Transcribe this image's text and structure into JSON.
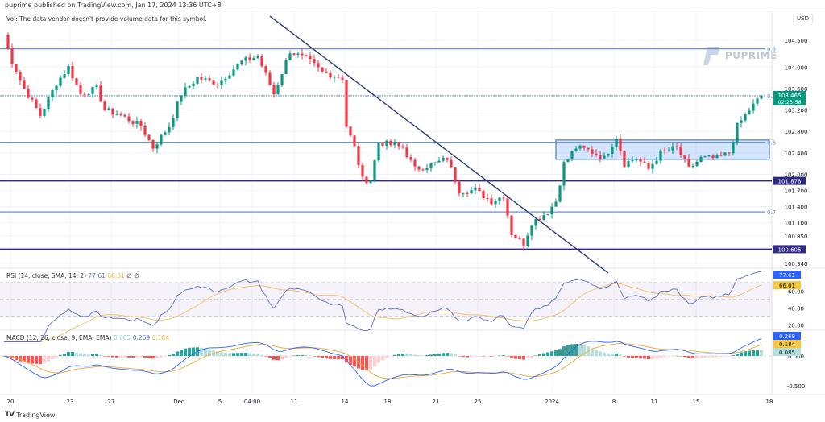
{
  "header": {
    "published": "puprime published on TradingView.com, Jan 17, 2024 13:36 UTC+8"
  },
  "volume_notice": "Vol: The data vendor doesn't provide volume data for this symbol.",
  "currency": "USD",
  "watermark": "PUPRIME",
  "footer": {
    "brand": "TradingView",
    "brand_icon": "tradingview-logo-icon"
  },
  "rsi_legend": {
    "label": "RSI (14, close, SMA, 14, 2)",
    "rsi": "77.61",
    "sma": "66.01",
    "extra": "∅ ∅"
  },
  "macd_legend": {
    "label": "MACD (12, 26, close, 9, EMA, EMA)",
    "hist": "0.085",
    "macd": "0.269",
    "signal": "0.184"
  },
  "colors": {
    "up": "#089981",
    "down": "#f23645",
    "fib": "#6a96c8",
    "level": "#2e2a80",
    "trend": "#2b3a7a",
    "rsi": "#5b6fc7",
    "rsi_sma": "#f0c060",
    "macd": "#2962ff",
    "signal": "#f0a830"
  },
  "chart_data": {
    "type": "candlestick",
    "symbol_currency": "USD",
    "price_axis_ticks": [
      "104.500",
      "104.000",
      "103.600",
      "103.200",
      "102.800",
      "102.400",
      "102.000",
      "101.700",
      "101.400",
      "101.100",
      "100.850",
      "100.340"
    ],
    "price_axis_tick_values": [
      104.5,
      104.0,
      103.6,
      103.2,
      102.8,
      102.4,
      102.0,
      101.7,
      101.4,
      101.1,
      100.85,
      100.34
    ],
    "time_axis_ticks": [
      "20",
      "23",
      "27",
      "Dec",
      "5",
      "04:00",
      "11",
      "14",
      "18",
      "21",
      "25",
      "2024",
      "8",
      "11",
      "15",
      "18"
    ],
    "close_keypoints_by_bar": [
      [
        0,
        104.6
      ],
      [
        2,
        104.1
      ],
      [
        5,
        103.6
      ],
      [
        9,
        103.1
      ],
      [
        13,
        103.7
      ],
      [
        16,
        104.0
      ],
      [
        19,
        103.5
      ],
      [
        23,
        103.6
      ],
      [
        25,
        103.2
      ],
      [
        29,
        103.1
      ],
      [
        34,
        102.9
      ],
      [
        37,
        102.5
      ],
      [
        41,
        102.9
      ],
      [
        44,
        103.5
      ],
      [
        48,
        103.8
      ],
      [
        53,
        103.7
      ],
      [
        59,
        104.1
      ],
      [
        63,
        104.2
      ],
      [
        67,
        103.5
      ],
      [
        71,
        104.3
      ],
      [
        76,
        104.1
      ],
      [
        79,
        103.9
      ],
      [
        84,
        103.8
      ],
      [
        85,
        102.9
      ],
      [
        87,
        102.5
      ],
      [
        89,
        101.9
      ],
      [
        91,
        101.9
      ],
      [
        93,
        102.6
      ],
      [
        99,
        102.5
      ],
      [
        102,
        102.1
      ],
      [
        107,
        102.2
      ],
      [
        110,
        102.3
      ],
      [
        113,
        101.7
      ],
      [
        117,
        101.7
      ],
      [
        121,
        101.5
      ],
      [
        124,
        101.6
      ],
      [
        126,
        100.9
      ],
      [
        129,
        100.7
      ],
      [
        131,
        101.1
      ],
      [
        135,
        101.3
      ],
      [
        137,
        101.5
      ],
      [
        139,
        102.2
      ],
      [
        142,
        102.5
      ],
      [
        145,
        102.45
      ],
      [
        149,
        102.3
      ],
      [
        152,
        102.7
      ],
      [
        154,
        102.2
      ],
      [
        157,
        102.3
      ],
      [
        160,
        102.1
      ],
      [
        163,
        102.4
      ],
      [
        167,
        102.5
      ],
      [
        170,
        102.1
      ],
      [
        173,
        102.3
      ],
      [
        177,
        102.3
      ],
      [
        180,
        102.4
      ],
      [
        182,
        102.9
      ],
      [
        185,
        103.2
      ],
      [
        188,
        103.465
      ]
    ],
    "last_price": "103.465",
    "countdown": "02:23:58",
    "horizontal_levels": [
      {
        "price": 104.34,
        "label": "0.3",
        "kind": "fib"
      },
      {
        "price": 103.465,
        "label": "0.5",
        "kind": "fib"
      },
      {
        "price": 102.6,
        "label": "0.6",
        "kind": "fib"
      },
      {
        "price": 101.3,
        "label": "0.7",
        "kind": "fib"
      },
      {
        "price": 101.878,
        "label": "101.878",
        "kind": "level"
      },
      {
        "price": 100.605,
        "label": "100.605",
        "kind": "level"
      }
    ],
    "range_box": {
      "from_bar": 137,
      "to_bar": 190,
      "top": 102.64,
      "bottom": 102.28
    },
    "trendline": {
      "from": [
        66,
        104.95
      ],
      "to": [
        150,
        100.16
      ]
    },
    "rsi": {
      "ticks": [
        "20.00",
        "40.00",
        "60.00"
      ],
      "levels": [
        70,
        50,
        30
      ],
      "value": "77.61",
      "sma": "66.01"
    },
    "macd": {
      "ticks": [
        "0.000",
        "-0.500"
      ],
      "macd": "0.269",
      "signal": "0.184",
      "hist": "0.085"
    }
  }
}
